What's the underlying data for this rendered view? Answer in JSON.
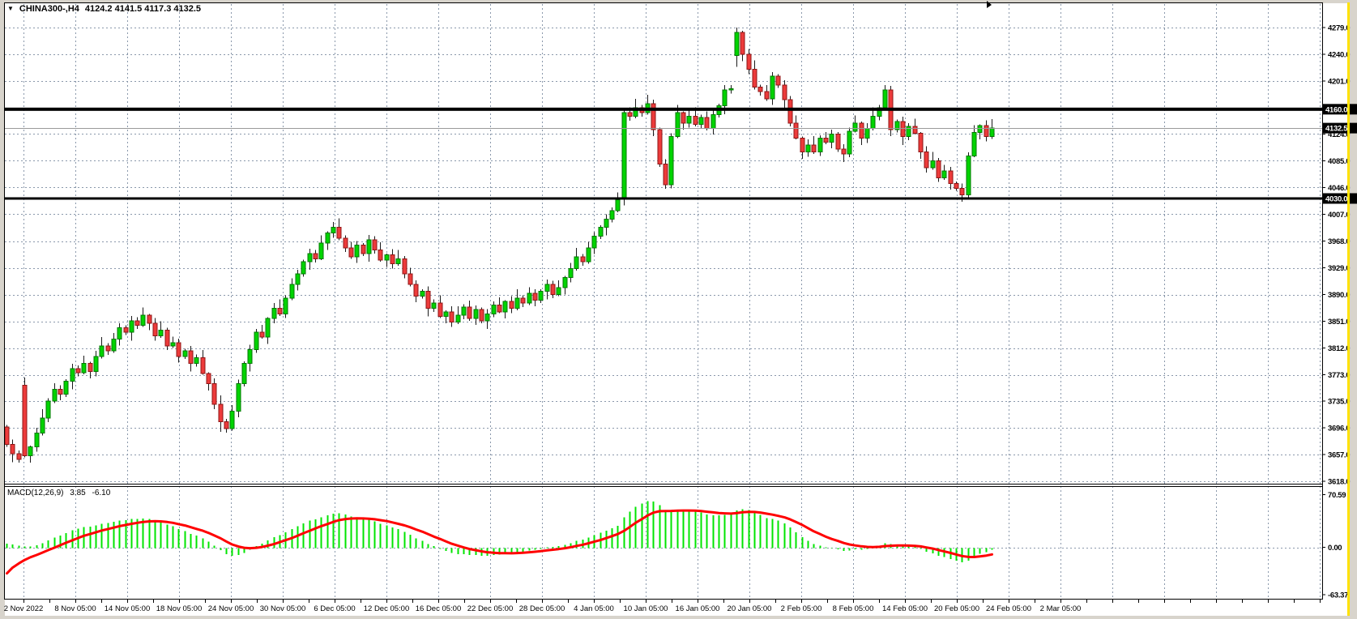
{
  "window": {
    "symbol_period": "CHINA300-,H4",
    "ohlc_text": "4124.2 4141.5 4117.3 4132.5"
  },
  "chart_data": {
    "type": "candlestick",
    "symbol": "CHINA300-",
    "timeframe": "H4",
    "current_candle": {
      "open": 4124.2,
      "high": 4141.5,
      "low": 4117.3,
      "close": 4132.5
    },
    "current_price": 4132.5,
    "price_axis": {
      "visible_range": [
        3618.0,
        4279.0
      ],
      "labels": [
        "4279.0",
        "4240.0",
        "4201.0",
        "4124.0",
        "4085.0",
        "4046.0",
        "4007.0",
        "3968.0",
        "3929.0",
        "3890.0",
        "3851.0",
        "3812.0",
        "3773.0",
        "3735.0",
        "3696.0",
        "3657.0",
        "3618.0"
      ],
      "grid_prices": [
        4279,
        4240,
        4201,
        4162,
        4124,
        4085,
        4046,
        4007,
        3968,
        3929,
        3890,
        3851,
        3812,
        3773,
        3735,
        3696,
        3657,
        3618
      ],
      "badges": [
        {
          "label": "4160.0",
          "price": 4160
        },
        {
          "label": "4132.5",
          "price": 4132.5
        },
        {
          "label": "4030.0",
          "price": 4030
        }
      ]
    },
    "time_axis": {
      "labels": [
        "2 Nov 2022",
        "8 Nov 05:00",
        "14 Nov 05:00",
        "18 Nov 05:00",
        "24 Nov 05:00",
        "30 Nov 05:00",
        "6 Dec 05:00",
        "12 Dec 05:00",
        "16 Dec 05:00",
        "22 Dec 05:00",
        "28 Dec 05:00",
        "4 Jan 05:00",
        "10 Jan 05:00",
        "16 Jan 05:00",
        "20 Jan 05:00",
        "2 Feb 05:00",
        "8 Feb 05:00",
        "14 Feb 05:00",
        "20 Feb 05:00",
        "24 Feb 05:00",
        "2 Mar 05:00"
      ]
    },
    "objects": {
      "horizontal_lines": [
        {
          "price": 4160,
          "color": "#000000",
          "thickness": 4
        },
        {
          "price": 4030,
          "color": "#000000",
          "thickness": 3
        }
      ],
      "vertical_line_right_margin": {
        "color": "#FFE200",
        "thickness": 3
      }
    },
    "price_series": {
      "first_open": 3697,
      "closes": [
        3672,
        3658,
        3650,
        3655,
        3668,
        3688,
        3710,
        3735,
        3752,
        3745,
        3764,
        3782,
        3776,
        3790,
        3778,
        3800,
        3815,
        3808,
        3825,
        3842,
        3835,
        3852,
        3845,
        3860,
        3848,
        3830,
        3838,
        3815,
        3820,
        3800,
        3808,
        3790,
        3798,
        3775,
        3760,
        3730,
        3705,
        3695,
        3720,
        3760,
        3790,
        3810,
        3835,
        3828,
        3855,
        3870,
        3862,
        3885,
        3905,
        3920,
        3938,
        3950,
        3942,
        3965,
        3980,
        3988,
        3972,
        3958,
        3945,
        3962,
        3950,
        3970,
        3955,
        3940,
        3948,
        3935,
        3942,
        3920,
        3905,
        3888,
        3895,
        3870,
        3878,
        3858,
        3865,
        3850,
        3860,
        3872,
        3855,
        3868,
        3852,
        3862,
        3875,
        3865,
        3880,
        3870,
        3885,
        3878,
        3892,
        3882,
        3895,
        3905,
        3890,
        3900,
        3915,
        3928,
        3945,
        3938,
        3958,
        3975,
        3988,
        4000,
        4012,
        4028,
        4155,
        4150,
        4162,
        4155,
        4168,
        4130,
        4080,
        4050,
        4120,
        4155,
        4140,
        4150,
        4138,
        4148,
        4132,
        4152,
        4165,
        4188,
        4190,
        4272,
        4240,
        4218,
        4192,
        4186,
        4175,
        4208,
        4195,
        4174,
        4140,
        4118,
        4098,
        4108,
        4098,
        4118,
        4112,
        4124,
        4102,
        4095,
        4128,
        4140,
        4118,
        4132,
        4150,
        4162,
        4188,
        4130,
        4142,
        4120,
        4135,
        4125,
        4098,
        4075,
        4085,
        4060,
        4070,
        4052,
        4045,
        4035,
        4092,
        4126,
        4136,
        4120,
        4132.5
      ],
      "gap_opens": {
        "3": 3758,
        "104": 4030,
        "123": 4238
      },
      "extreme_highs": {
        "104": 4162,
        "108": 4181,
        "123": 4279,
        "148": 4195
      },
      "extreme_lows": {
        "36": 3690,
        "111": 4044,
        "123": 4222,
        "161": 4025
      }
    },
    "macd": {
      "label": "MACD(12,26,9)",
      "params": [
        12,
        26,
        9
      ],
      "main_value": "3.85",
      "signal_value": "-6.10",
      "axis": [
        {
          "label": "70.59",
          "value": 70.59
        },
        {
          "label": "0.00",
          "value": 0
        },
        {
          "label": "-63.37",
          "value": -63.37
        }
      ]
    },
    "colors": {
      "bull": "#00D400",
      "bull_border": "#007800",
      "bear": "#ED3B3B",
      "bear_border": "#8F1414",
      "wick": "#1b1b1b",
      "macd_hist": "#00E400",
      "macd_signal": "#FF0000",
      "grid": "#8A98AB",
      "frame_bg": "#D8D4CC",
      "badge_bg": "#000000",
      "badge_text": "#FFFFFF",
      "hline": "#000000",
      "current_price_line": "#9A9A9A",
      "yellow_line": "#FFE200"
    }
  }
}
